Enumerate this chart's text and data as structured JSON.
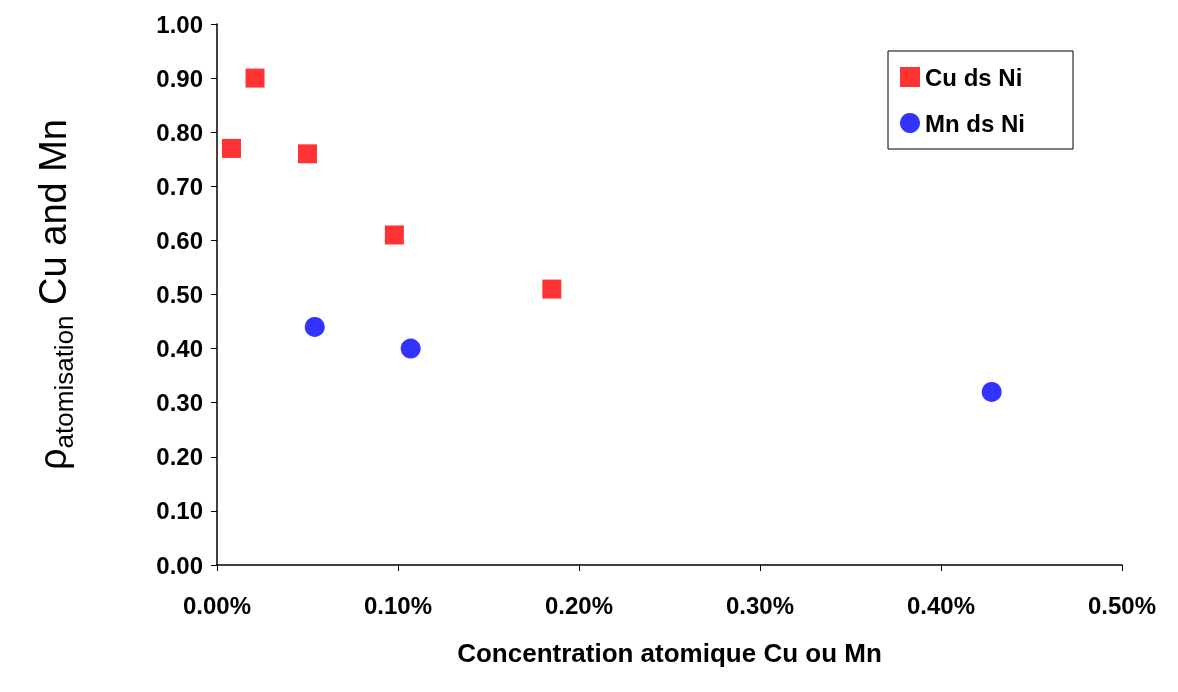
{
  "chart_data": {
    "type": "scatter",
    "xlabel": "Concentration atomique Cu ou Mn",
    "ylabel": "ρ$_{atomisation}$ Cu and Mn",
    "xlim": [
      0,
      0.5
    ],
    "xticks": [
      {
        "value": 0,
        "label": "0.00%"
      },
      {
        "value": 0.1,
        "label": "0.10%"
      },
      {
        "value": 0.2,
        "label": "0.20%"
      },
      {
        "value": 0.3,
        "label": "0.30%"
      },
      {
        "value": 0.4,
        "label": "0.40%"
      },
      {
        "value": 0.5,
        "label": "0.50%"
      }
    ],
    "ylim": [
      0,
      1
    ],
    "yticks": [
      {
        "value": 0,
        "label": "0.00"
      },
      {
        "value": 0.1,
        "label": "0.10"
      },
      {
        "value": 0.2,
        "label": "0.20"
      },
      {
        "value": 0.3,
        "label": "0.30"
      },
      {
        "value": 0.4,
        "label": "0.40"
      },
      {
        "value": 0.5,
        "label": "0.50"
      },
      {
        "value": 0.6,
        "label": "0.60"
      },
      {
        "value": 0.7,
        "label": "0.70"
      },
      {
        "value": 0.8,
        "label": "0.80"
      },
      {
        "value": 0.9,
        "label": "0.90"
      },
      {
        "value": 1,
        "label": "1.00"
      }
    ],
    "grid": false,
    "legend": "top right",
    "series": [
      {
        "name": "Cu ds Ni",
        "color": "#ff0000",
        "marker": "square",
        "x": [
          0.008,
          0.021,
          0.05,
          0.098,
          0.185
        ],
        "values": [
          0.77,
          0.9,
          0.76,
          0.61,
          0.51
        ]
      },
      {
        "name": "Mn ds Ni",
        "color": "#0000ff",
        "marker": "circle",
        "x": [
          0.054,
          0.107,
          0.428
        ],
        "values": [
          0.44,
          0.4,
          0.32
        ]
      }
    ]
  }
}
